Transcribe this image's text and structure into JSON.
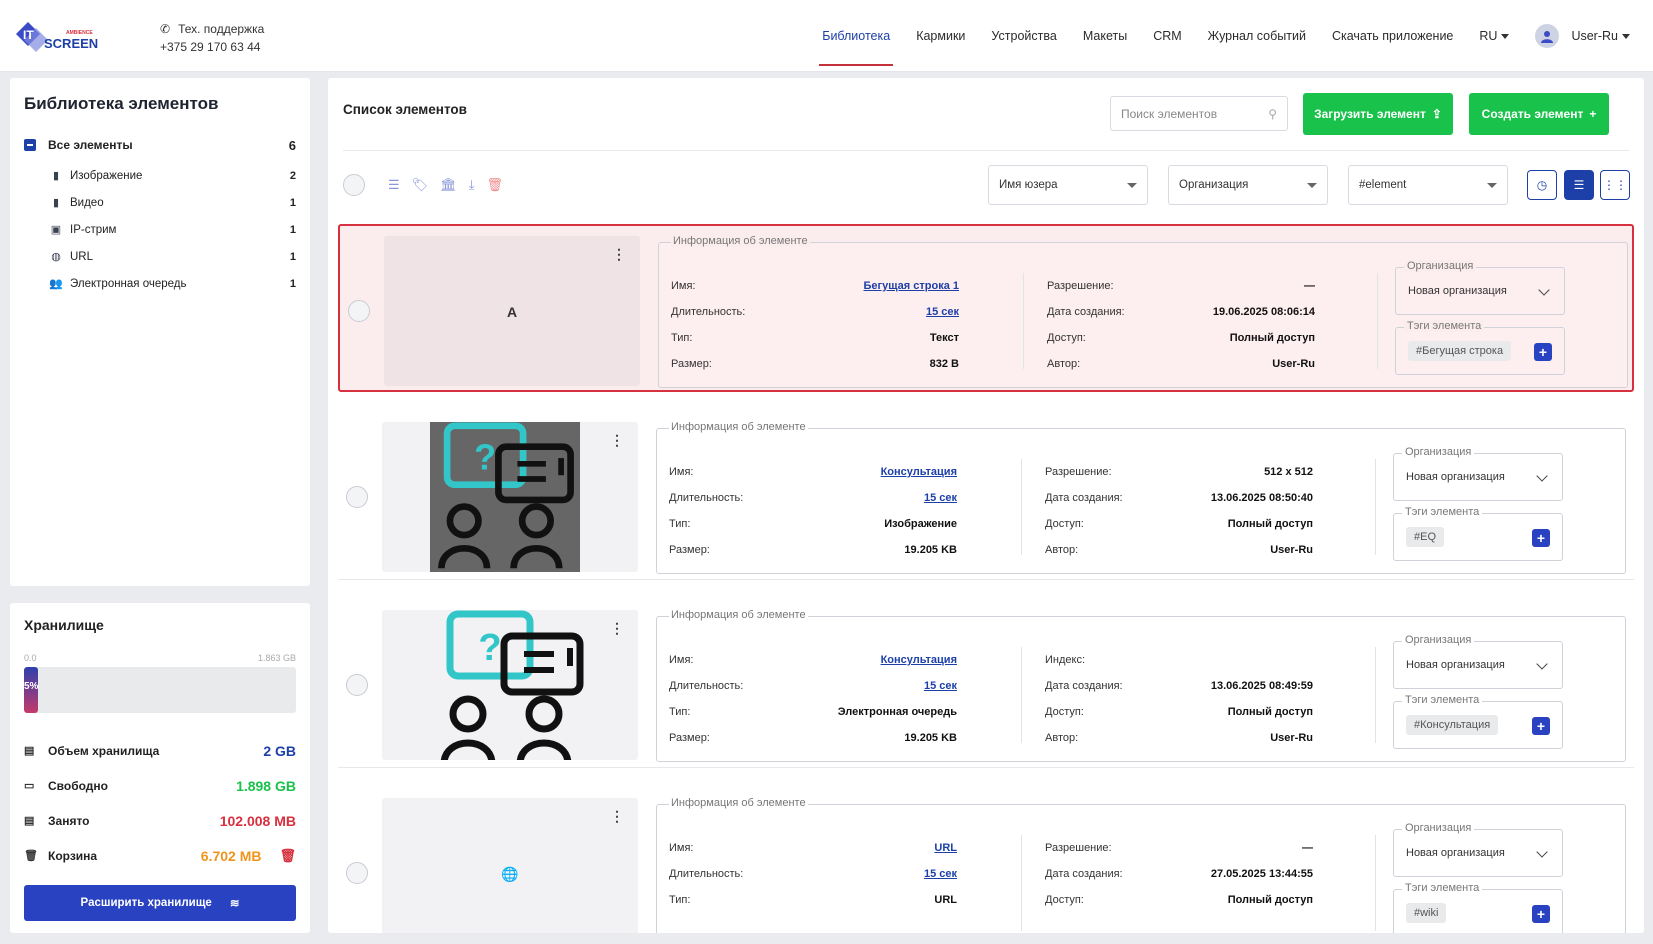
{
  "header": {
    "logo_top": "IT",
    "logo_brand": "AMBIENCE",
    "logo_bottom": "SCREEN",
    "support_label": "Тех. поддержка",
    "support_phone": "+375 29 170 63 44",
    "nav": [
      {
        "label": "Библиотека",
        "active": true
      },
      {
        "label": "Кармики"
      },
      {
        "label": "Устройства"
      },
      {
        "label": "Макеты"
      },
      {
        "label": "CRM"
      },
      {
        "label": "Журнал событий"
      },
      {
        "label": "Скачать приложение"
      }
    ],
    "lang": "RU",
    "user": "User-Ru"
  },
  "library": {
    "title": "Библиотека элементов",
    "root": {
      "label": "Все элементы",
      "count": "6"
    },
    "items": [
      {
        "label": "Изображение",
        "count": "2",
        "icon": "file-icon"
      },
      {
        "label": "Видео",
        "count": "1",
        "icon": "file-icon"
      },
      {
        "label": "IP-стрим",
        "count": "1",
        "icon": "image-icon"
      },
      {
        "label": "URL",
        "count": "1",
        "icon": "globe-icon"
      },
      {
        "label": "Электронная очередь",
        "count": "1",
        "icon": "users-icon"
      }
    ]
  },
  "storage": {
    "title": "Хранилище",
    "scale_min": "0.0",
    "scale_max": "1.863 GB",
    "bar_label": "5%",
    "fill_percent": 5,
    "rows": [
      {
        "label": "Объем хранилища",
        "value": "2 GB",
        "color": "#1d3fa8"
      },
      {
        "label": "Свободно",
        "value": "1.898 GB",
        "color": "#19c24a"
      },
      {
        "label": "Занято",
        "value": "102.008 MB",
        "color": "#d7303e"
      },
      {
        "label": "Корзина",
        "value": "6.702 MB",
        "color": "#f0941e"
      }
    ],
    "expand_button": "Расширить хранилище"
  },
  "main": {
    "title": "Список элементов",
    "search_placeholder": "Поиск элементов",
    "upload_button": "Загрузить элемент",
    "create_button": "Создать элемент",
    "filter_user": "Имя юзера",
    "filter_org": "Организация",
    "filter_tag": "#element",
    "info_legend": "Информация об элементе",
    "org_legend": "Организация",
    "tags_legend": "Тэги элемента",
    "labels": {
      "name": "Имя:",
      "duration": "Длительность:",
      "type": "Тип:",
      "size": "Размер:",
      "resolution": "Разрешение:",
      "index": "Индекс:",
      "created": "Дата создания:",
      "access": "Доступ:",
      "author": "Автор:"
    },
    "cards": [
      {
        "name": "Бегущая строка 1",
        "duration": "15 сек",
        "type": "Текст",
        "size": "832 B",
        "right_label": "Разрешение:",
        "resolution": "—",
        "created": "19.06.2025 08:06:14",
        "access": "Полный доступ",
        "author": "User-Ru",
        "org": "Новая организация",
        "tag": "#Бегущая строка",
        "preview_glyph": "A"
      },
      {
        "name": "Консультация",
        "duration": "15 сек",
        "type": "Изображение",
        "size": "19.205 KB",
        "right_label": "Разрешение:",
        "resolution": "512 x 512",
        "created": "13.06.2025 08:50:40",
        "access": "Полный доступ",
        "author": "User-Ru",
        "org": "Новая организация",
        "tag": "#EQ",
        "preview_glyph": ""
      },
      {
        "name": "Консультация",
        "duration": "15 сек",
        "type": "Электронная очередь",
        "size": "19.205 KB",
        "right_label": "Индекс:",
        "resolution": "",
        "created": "13.06.2025 08:49:59",
        "access": "Полный доступ",
        "author": "User-Ru",
        "org": "Новая организация",
        "tag": "#Консультация",
        "preview_glyph": ""
      },
      {
        "name": "URL",
        "duration": "15 сек",
        "type": "URL",
        "size": "",
        "right_label": "Разрешение:",
        "resolution": "—",
        "created": "27.05.2025 13:44:55",
        "access": "Полный доступ",
        "author": "",
        "org": "Новая организация",
        "tag": "#wiki",
        "preview_glyph": "🌐"
      }
    ]
  },
  "colors": {
    "accent": "#1d3fa8",
    "green": "#19c24a",
    "danger": "#d7303e"
  }
}
